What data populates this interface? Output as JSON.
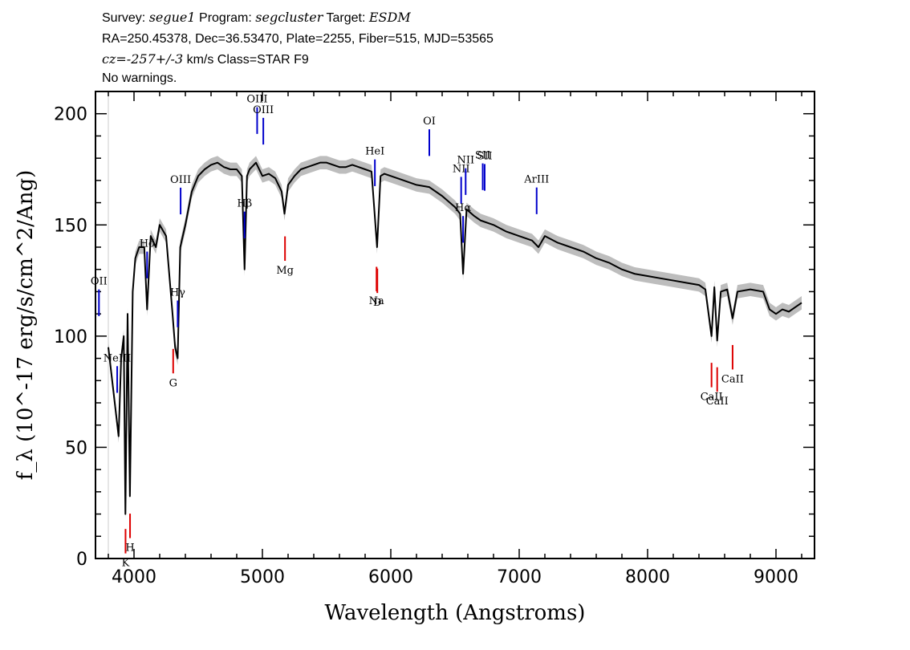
{
  "header": {
    "survey_label": "Survey:",
    "survey": "segue1",
    "program_label": "Program:",
    "program": "segcluster",
    "target_label": "Target:",
    "target": "ESDM",
    "line2": "RA=250.45378, Dec=36.53470, Plate=2255, Fiber=515, MJD=53565",
    "cz": "cz=-257+/-3",
    "cz_rest": "km/s Class=STAR F9",
    "line4": "No warnings."
  },
  "chart_data": {
    "type": "line",
    "xlabel": "Wavelength (Angstroms)",
    "ylabel": "f_λ (10^-17 erg/s/cm^2/Ang)",
    "xlim": [
      3700,
      9300
    ],
    "ylim": [
      0,
      210
    ],
    "xticks": [
      "4000",
      "5000",
      "6000",
      "7000",
      "8000",
      "9000"
    ],
    "yticks": [
      "0",
      "50",
      "100",
      "150",
      "200"
    ],
    "colors": {
      "spectrum": "#000000",
      "error": "#bdbdbd",
      "emission": "#0000cc",
      "absorption": "#dd0000"
    },
    "series": [
      {
        "x": [
          3800,
          3820,
          3850,
          3880,
          3900,
          3920,
          3933,
          3950,
          3968,
          3990,
          4010,
          4040,
          4080,
          4102,
          4130,
          4170,
          4200,
          4250,
          4300,
          4320,
          4340,
          4360,
          4400,
          4450,
          4500,
          4550,
          4600,
          4650,
          4700,
          4750,
          4800,
          4840,
          4861,
          4880,
          4900,
          4950,
          5000,
          5050,
          5100,
          5150,
          5172,
          5200,
          5250,
          5300,
          5350,
          5400,
          5450,
          5500,
          5550,
          5600,
          5650,
          5700,
          5750,
          5800,
          5850,
          5893,
          5920,
          5950,
          6000,
          6100,
          6200,
          6300,
          6400,
          6500,
          6540,
          6563,
          6590,
          6650,
          6700,
          6800,
          6900,
          7000,
          7100,
          7150,
          7200,
          7300,
          7400,
          7500,
          7600,
          7700,
          7800,
          7900,
          8000,
          8100,
          8200,
          8300,
          8400,
          8450,
          8498,
          8520,
          8542,
          8570,
          8620,
          8662,
          8700,
          8800,
          8900,
          8950,
          9000,
          9050,
          9100,
          9150,
          9200
        ],
        "y": [
          95,
          85,
          70,
          55,
          90,
          100,
          20,
          110,
          28,
          120,
          135,
          140,
          140,
          112,
          145,
          140,
          150,
          145,
          110,
          95,
          90,
          140,
          150,
          165,
          172,
          175,
          177,
          178,
          176,
          175,
          175,
          172,
          130,
          172,
          175,
          178,
          172,
          173,
          171,
          165,
          155,
          168,
          172,
          175,
          176,
          177,
          178,
          178,
          177,
          176,
          176,
          177,
          176,
          175,
          174,
          140,
          172,
          173,
          172,
          170,
          168,
          167,
          163,
          158,
          155,
          128,
          157,
          154,
          152,
          150,
          147,
          145,
          143,
          140,
          145,
          142,
          140,
          138,
          135,
          133,
          130,
          128,
          127,
          126,
          125,
          124,
          123,
          121,
          100,
          122,
          98,
          120,
          121,
          108,
          120,
          121,
          120,
          112,
          110,
          112,
          111,
          113,
          115
        ]
      }
    ],
    "emission_lines": [
      {
        "label": "OII",
        "x": 3727
      },
      {
        "label": "NeIII",
        "x": 3869
      },
      {
        "label": "Hδ",
        "x": 4102
      },
      {
        "label": "Hγ",
        "x": 4340
      },
      {
        "label": "OIII",
        "x": 4363
      },
      {
        "label": "Hβ",
        "x": 4861
      },
      {
        "label": "OIII",
        "x": 4959
      },
      {
        "label": "OIII",
        "x": 5007
      },
      {
        "label": "HeI",
        "x": 5876
      },
      {
        "label": "OI",
        "x": 6300
      },
      {
        "label": "NII",
        "x": 6548
      },
      {
        "label": "Hα",
        "x": 6563
      },
      {
        "label": "NII",
        "x": 6583
      },
      {
        "label": "SII",
        "x": 6716
      },
      {
        "label": "SII",
        "x": 6731
      },
      {
        "label": "ArIII",
        "x": 7136
      }
    ],
    "absorption_lines": [
      {
        "label": "K",
        "x": 3934
      },
      {
        "label": "H",
        "x": 3969
      },
      {
        "label": "G",
        "x": 4305
      },
      {
        "label": "Mg",
        "x": 5176
      },
      {
        "label": "Na",
        "x": 5889
      },
      {
        "label": "D",
        "x": 5895
      },
      {
        "label": "CaII",
        "x": 8498
      },
      {
        "label": "CaII",
        "x": 8542
      },
      {
        "label": "CaII",
        "x": 8662
      }
    ]
  }
}
